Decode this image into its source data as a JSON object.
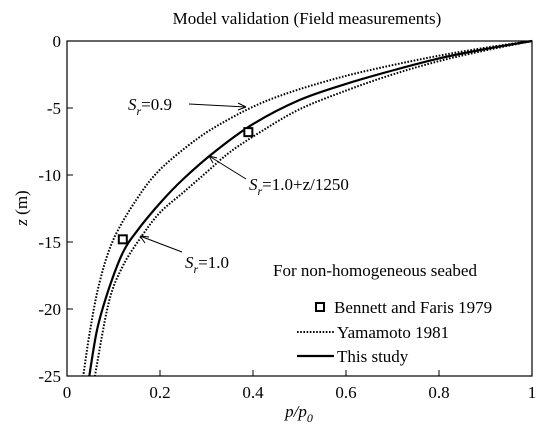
{
  "chart_data": {
    "type": "line",
    "title": "Model validation (Field measurements)",
    "xlabel": "p/p0",
    "xlabel_main": "p/p",
    "xlabel_sub": "0",
    "ylabel": "z (m)",
    "ylabel_main": "z",
    "ylabel_rest": " (m)",
    "xlim": [
      0,
      1
    ],
    "ylim": [
      -25,
      0
    ],
    "x_ticks": [
      0,
      0.2,
      0.4,
      0.6,
      0.8,
      1
    ],
    "x_tick_labels": [
      "0",
      "0.2",
      "0.4",
      "0.6",
      "0.8",
      "1"
    ],
    "y_ticks": [
      0,
      -5,
      -10,
      -15,
      -20,
      -25
    ],
    "y_tick_labels": [
      "0",
      "-5",
      "-10",
      "-15",
      "-20",
      "-25"
    ],
    "grid": false,
    "legend_title": "For non-homogeneous seabed",
    "legend_placement": "bottom-right",
    "legend": [
      {
        "label": "Bennett and Faris 1979",
        "style": "square-marker"
      },
      {
        "label": "Yamamoto 1981",
        "style": "dotted"
      },
      {
        "label": "This study",
        "style": "solid"
      }
    ],
    "series": [
      {
        "name": "Bennett and Faris 1979",
        "style": "markers",
        "points": [
          [
            0.39,
            -6.8
          ],
          [
            0.12,
            -14.8
          ]
        ]
      },
      {
        "name": "Yamamoto 1981",
        "style": "dotted",
        "annotation_text": "=0.9",
        "points": [
          [
            1,
            0
          ],
          [
            0.9,
            -0.5
          ],
          [
            0.8,
            -1.1
          ],
          [
            0.7,
            -1.8
          ],
          [
            0.6,
            -2.6
          ],
          [
            0.5,
            -3.6
          ],
          [
            0.42,
            -4.6
          ],
          [
            0.35,
            -5.8
          ],
          [
            0.28,
            -7.3
          ],
          [
            0.2,
            -9.6
          ],
          [
            0.15,
            -11.8
          ],
          [
            0.1,
            -14.8
          ],
          [
            0.07,
            -18.0
          ],
          [
            0.05,
            -21.5
          ],
          [
            0.035,
            -25
          ]
        ]
      },
      {
        "name": "This study",
        "style": "solid",
        "annotation_text": "=1.0+z/1250",
        "points": [
          [
            1,
            0
          ],
          [
            0.9,
            -0.6
          ],
          [
            0.8,
            -1.3
          ],
          [
            0.7,
            -2.2
          ],
          [
            0.6,
            -3.2
          ],
          [
            0.5,
            -4.4
          ],
          [
            0.4,
            -6.2
          ],
          [
            0.32,
            -8.2
          ],
          [
            0.25,
            -10.3
          ],
          [
            0.2,
            -12.1
          ],
          [
            0.15,
            -14.2
          ],
          [
            0.12,
            -15.8
          ],
          [
            0.09,
            -18.5
          ],
          [
            0.065,
            -21.5
          ],
          [
            0.048,
            -25
          ]
        ]
      },
      {
        "name": "Yamamoto 1981",
        "style": "dotted",
        "annotation_text": "=1.0",
        "points": [
          [
            1,
            0
          ],
          [
            0.9,
            -0.7
          ],
          [
            0.8,
            -1.5
          ],
          [
            0.7,
            -2.5
          ],
          [
            0.6,
            -3.7
          ],
          [
            0.5,
            -5.1
          ],
          [
            0.42,
            -6.7
          ],
          [
            0.35,
            -8.3
          ],
          [
            0.3,
            -9.8
          ],
          [
            0.25,
            -11.3
          ],
          [
            0.2,
            -12.8
          ],
          [
            0.16,
            -14.6
          ],
          [
            0.12,
            -16.8
          ],
          [
            0.09,
            -19.5
          ],
          [
            0.06,
            -25
          ]
        ]
      }
    ],
    "annotation_symbol": "S",
    "annotation_sub": "r"
  }
}
